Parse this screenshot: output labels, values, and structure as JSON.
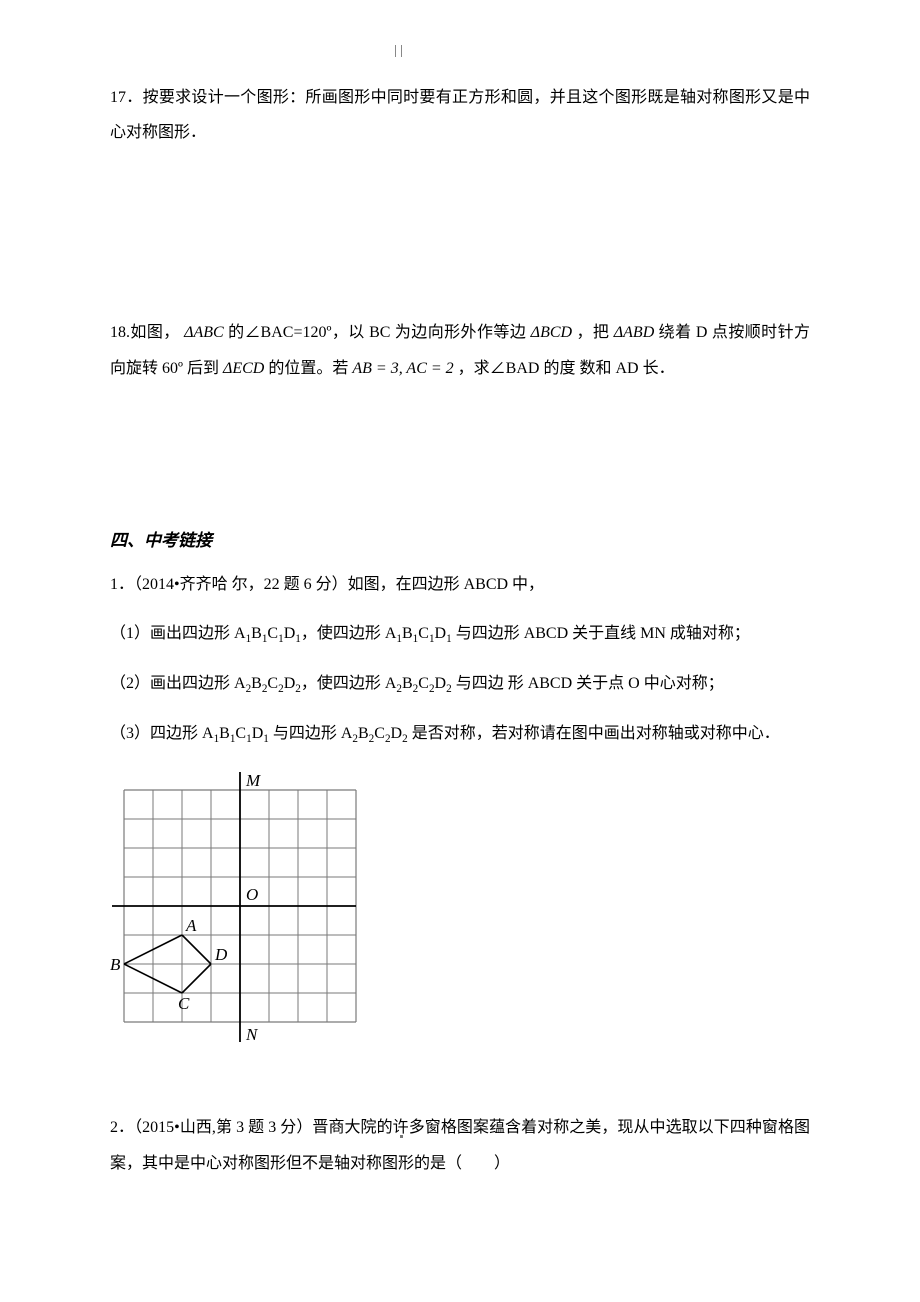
{
  "q17": {
    "num": "17．",
    "text": "按要求设计一个图形：所画图形中同时要有正方形和圆，并且这个图形既是轴对称图形又是中心对称图形．"
  },
  "q18": {
    "prefix": "18.如图，",
    "tri1": "ΔABC",
    "mid1": "的∠BAC=120º，以 BC 为边向形外作等边",
    "tri2": "ΔBCD",
    "mid2": "，把",
    "tri3": "ΔABD",
    "mid3": "绕着 D 点按顺时针方向旋转 60º 后到",
    "tri4": "ΔECD",
    "mid4": "的位置。若",
    "eq1": "AB = 3, AC = 2",
    "tail": "，求∠BAD 的度 数和 AD 长．"
  },
  "sec4": {
    "title": "四、中考链接"
  },
  "zk1": {
    "intro": "1．（2014•齐齐哈 尔，22 题 6 分）如图，在四边形 ABCD 中，",
    "p1a": "（1）画出四边形 A",
    "p1b": "B",
    "p1c": "C",
    "p1d": "D",
    "p1e": "，使四边形 A",
    "p1f": "B",
    "p1g": "C",
    "p1h": "D",
    "p1i": " 与四边形 ABCD 关于直线 MN 成轴对称；",
    "p2a": "（2）画出四边形 A",
    "p2b": "B",
    "p2c": "C",
    "p2d": "D",
    "p2e": "，使四边形 A",
    "p2f": "B",
    "p2g": "C",
    "p2h": "D",
    "p2i": " 与四边 形 ABCD 关于点 O 中心对称；",
    "p3a": "（3）四边形 A",
    "p3b": "B",
    "p3c": "C",
    "p3d": "D",
    "p3e": " 与四边形 A",
    "p3f": "B",
    "p3g": "C",
    "p3h": "D",
    "p3i": " 是否对称，若对称请在图中画出对称轴或对称中心．",
    "sub1": "1",
    "sub2": "2"
  },
  "zk2": {
    "text1": "2．（2015•山西,第 3 题 3 分）晋商大院的许多窗格图案蕴含着对称之美，现从中选取以下四种窗格图案，其中是中心对称图形但不是轴对称图形的是（　　）"
  },
  "fig": {
    "cell": 29,
    "cols": 8,
    "rows": 8,
    "ox": 14,
    "oy": 25,
    "labels": {
      "M": "M",
      "N": "N",
      "O": "O",
      "A": "A",
      "B": "B",
      "C": "C",
      "D": "D"
    },
    "colors": {
      "grid": "#7a7a7a",
      "axis": "#000000",
      "text": "#000000",
      "shape": "#000000"
    },
    "font": "italic 17px 'Times New Roman', serif"
  }
}
